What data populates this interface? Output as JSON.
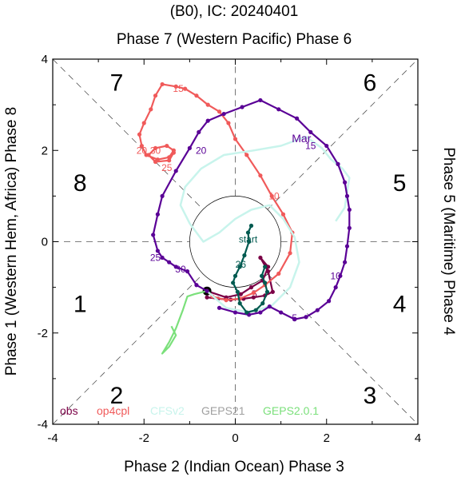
{
  "chart_data": {
    "type": "line",
    "title": "(B0), IC: 20240401",
    "xlabel": "Phase 2 (Indian Ocean) Phase 3",
    "ylabel": "Phase 1 (Western Hem, Africa) Phase 8",
    "top_label": "Phase 7 (Western Pacific) Phase 6",
    "right_label": "Phase 5 (Maritime) Phase 4",
    "xlim": [
      -4,
      4
    ],
    "ylim": [
      -4,
      4
    ],
    "xticks": [
      "-4",
      "-2",
      "0",
      "2",
      "4"
    ],
    "yticks": [
      "-4",
      "-2",
      "0",
      "2",
      "4"
    ],
    "unit_circle_radius": 1,
    "phase_labels": [
      {
        "text": "7",
        "x": -2.6,
        "y": 3.5
      },
      {
        "text": "6",
        "x": 2.95,
        "y": 3.5
      },
      {
        "text": "8",
        "x": -3.4,
        "y": 1.3
      },
      {
        "text": "5",
        "x": 3.6,
        "y": 1.3
      },
      {
        "text": "1",
        "x": -3.4,
        "y": -1.35
      },
      {
        "text": "4",
        "x": 3.6,
        "y": -1.35
      },
      {
        "text": "2",
        "x": -2.6,
        "y": -3.35
      },
      {
        "text": "3",
        "x": 2.95,
        "y": -3.35
      }
    ],
    "legend_position": "bottom-left",
    "series": [
      {
        "name": "obs",
        "color": "#7b0046",
        "points": [
          [
            -0.62,
            -1.08
          ],
          [
            -0.2,
            -1.22
          ],
          [
            0.12,
            -1.15
          ],
          [
            0.35,
            -1.0
          ],
          [
            0.6,
            -0.85
          ],
          [
            0.72,
            -0.55
          ],
          [
            0.55,
            -0.35
          ],
          [
            0.72,
            -0.65
          ],
          [
            0.82,
            -1.1
          ],
          [
            0.65,
            -1.18
          ],
          [
            0.4,
            -1.22
          ],
          [
            0.18,
            -1.25
          ],
          [
            -0.1,
            -1.27
          ],
          [
            -0.38,
            -1.25
          ],
          [
            -0.62,
            -1.22
          ]
        ],
        "markers": "small",
        "start_marker": [
          -0.62,
          -1.08
        ],
        "labels": [
          {
            "text": "5",
            "x": 0.42,
            "y": -1.15
          }
        ]
      },
      {
        "name": "op4cpl",
        "color": "#f05a5a",
        "points": [
          [
            -0.62,
            -1.08
          ],
          [
            -0.5,
            -1.2
          ],
          [
            -0.2,
            -1.28
          ],
          [
            0.1,
            -1.25
          ],
          [
            0.4,
            -1.12
          ],
          [
            0.65,
            -0.95
          ],
          [
            0.95,
            -0.7
          ],
          [
            1.2,
            -0.25
          ],
          [
            1.25,
            0.2
          ],
          [
            1.05,
            0.6
          ],
          [
            0.8,
            1.0
          ],
          [
            0.55,
            1.45
          ],
          [
            0.25,
            1.9
          ],
          [
            0.0,
            2.25
          ],
          [
            -0.15,
            2.6
          ],
          [
            -0.35,
            2.85
          ],
          [
            -0.6,
            3.0
          ],
          [
            -0.85,
            3.2
          ],
          [
            -1.1,
            3.35
          ],
          [
            -1.3,
            3.4
          ],
          [
            -1.6,
            3.45
          ],
          [
            -1.75,
            3.2
          ],
          [
            -1.85,
            2.9
          ],
          [
            -2.0,
            2.6
          ],
          [
            -2.1,
            2.35
          ],
          [
            -2.05,
            2.1
          ],
          [
            -1.95,
            1.9
          ],
          [
            -1.7,
            1.8
          ],
          [
            -1.45,
            1.85
          ],
          [
            -1.35,
            2.0
          ],
          [
            -1.5,
            2.1
          ],
          [
            -1.75,
            2.05
          ],
          [
            -1.9,
            1.9
          ],
          [
            -1.75,
            1.75
          ],
          [
            -1.45,
            1.78
          ],
          [
            -1.35,
            1.95
          ]
        ],
        "labels": [
          {
            "text": "10",
            "x": 0.85,
            "y": 1.0
          },
          {
            "text": "15",
            "x": -1.25,
            "y": 3.35
          },
          {
            "text": "20",
            "x": -2.05,
            "y": 2.0
          },
          {
            "text": "30",
            "x": -1.75,
            "y": 2.0
          },
          {
            "text": "25",
            "x": -1.5,
            "y": 1.62
          }
        ]
      },
      {
        "name": "CFSv2",
        "color": "#c8f4ec",
        "points": [
          [
            -0.62,
            -1.08
          ],
          [
            -0.2,
            -1.45
          ],
          [
            0.3,
            -1.55
          ],
          [
            0.8,
            -1.4
          ],
          [
            1.2,
            -1.0
          ],
          [
            1.4,
            -0.45
          ],
          [
            1.3,
            0.1
          ],
          [
            1.05,
            0.5
          ],
          [
            0.75,
            0.8
          ],
          [
            0.35,
            0.7
          ],
          [
            0.0,
            0.5
          ],
          [
            -0.35,
            0.2
          ],
          [
            -0.7,
            0.0
          ],
          [
            -1.0,
            0.4
          ],
          [
            -1.2,
            0.8
          ],
          [
            -1.1,
            1.2
          ],
          [
            -0.75,
            1.6
          ],
          [
            -0.25,
            1.9
          ],
          [
            0.4,
            2.0
          ],
          [
            1.0,
            2.1
          ],
          [
            1.55,
            2.3
          ],
          [
            1.9,
            2.05
          ],
          [
            2.1,
            1.8
          ],
          [
            2.35,
            1.6
          ],
          [
            2.5,
            1.4
          ],
          [
            2.45,
            1.1
          ],
          [
            2.4,
            0.75
          ],
          [
            2.2,
            0.45
          ]
        ]
      },
      {
        "name": "GEPS21",
        "color": "#a0a0a0",
        "points": []
      },
      {
        "name": "GEPS2.0.1",
        "color": "#7be07b",
        "points": [
          [
            -0.62,
            -1.08
          ],
          [
            -0.9,
            -1.15
          ],
          [
            -1.05,
            -1.2
          ],
          [
            -1.15,
            -1.5
          ],
          [
            -1.3,
            -1.9
          ],
          [
            -1.45,
            -2.2
          ],
          [
            -1.6,
            -2.45
          ],
          [
            -1.45,
            -2.3
          ],
          [
            -1.3,
            -2.05
          ],
          [
            -1.4,
            -1.85
          ]
        ]
      },
      {
        "name": "",
        "color": "#5a0096",
        "points": [
          [
            -0.62,
            -1.08
          ],
          [
            -0.85,
            -0.95
          ],
          [
            -1.05,
            -0.65
          ],
          [
            -1.3,
            -0.55
          ],
          [
            -1.45,
            -0.45
          ],
          [
            -1.6,
            -0.35
          ],
          [
            -1.7,
            -0.2
          ],
          [
            -1.8,
            0.15
          ],
          [
            -1.7,
            0.6
          ],
          [
            -1.6,
            1.0
          ],
          [
            -1.3,
            1.55
          ],
          [
            -1.0,
            2.05
          ],
          [
            -0.8,
            2.4
          ],
          [
            -0.6,
            2.65
          ],
          [
            -0.25,
            2.8
          ],
          [
            0.15,
            2.95
          ],
          [
            0.55,
            3.1
          ],
          [
            0.95,
            2.9
          ],
          [
            1.35,
            2.7
          ],
          [
            1.65,
            2.4
          ],
          [
            2.0,
            2.1
          ],
          [
            2.25,
            1.7
          ],
          [
            2.4,
            1.3
          ],
          [
            2.45,
            1.0
          ],
          [
            2.5,
            0.7
          ],
          [
            2.5,
            0.3
          ],
          [
            2.45,
            -0.1
          ],
          [
            2.4,
            -0.45
          ],
          [
            2.3,
            -0.75
          ],
          [
            2.2,
            -1.0
          ],
          [
            2.05,
            -1.3
          ],
          [
            1.8,
            -1.5
          ],
          [
            1.55,
            -1.65
          ],
          [
            1.3,
            -1.7
          ],
          [
            1.0,
            -1.55
          ],
          [
            0.75,
            -1.42
          ],
          [
            0.55,
            -1.55
          ],
          [
            0.3,
            -1.6
          ],
          [
            0.0,
            -1.55
          ],
          [
            -0.35,
            -1.45
          ]
        ],
        "labels": [
          {
            "text": "5",
            "x": 1.3,
            "y": -1.67
          },
          {
            "text": "10",
            "x": 2.2,
            "y": -0.75
          },
          {
            "text": "15",
            "x": 1.65,
            "y": 2.1
          },
          {
            "text": "Mar",
            "x": 1.45,
            "y": 2.25
          },
          {
            "text": "20",
            "x": -0.75,
            "y": 2.0
          },
          {
            "text": "25",
            "x": -1.75,
            "y": -0.35
          },
          {
            "text": "30",
            "x": -1.2,
            "y": -0.6
          }
        ]
      },
      {
        "name": "",
        "color": "#005a50",
        "points": [
          [
            0.35,
            0.35
          ],
          [
            0.28,
            0.2
          ],
          [
            0.3,
            0.0
          ],
          [
            0.2,
            -0.3
          ],
          [
            0.1,
            -0.55
          ],
          [
            0.0,
            -0.75
          ],
          [
            -0.05,
            -0.9
          ],
          [
            0.05,
            -1.1
          ],
          [
            0.1,
            -1.35
          ],
          [
            0.25,
            -1.55
          ],
          [
            0.45,
            -1.5
          ],
          [
            0.6,
            -1.35
          ],
          [
            0.7,
            -1.1
          ],
          [
            0.65,
            -0.9
          ],
          [
            0.58,
            -0.75
          ],
          [
            0.65,
            -0.55
          ]
        ],
        "labels": [
          {
            "text": "start",
            "x": 0.28,
            "y": 0.05
          },
          {
            "text": "26",
            "x": 0.12,
            "y": -0.5
          }
        ]
      }
    ],
    "day_labels_note": ""
  }
}
